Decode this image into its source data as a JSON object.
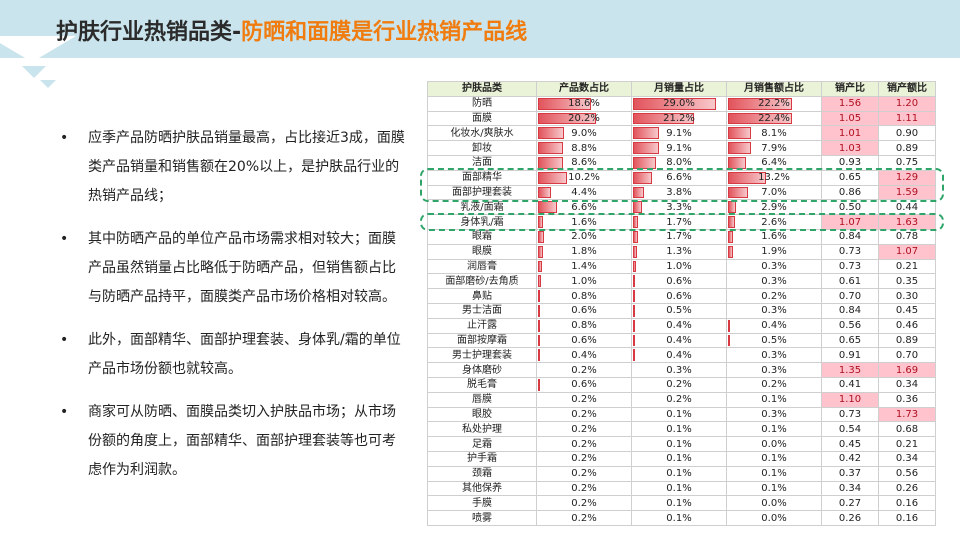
{
  "title": {
    "part1": "护肤行业热销品类-",
    "part2": "防晒和面膜是行业热销产品线"
  },
  "bullets": [
    "应季产品防晒护肤品销量最高，占比接近3成，面膜类产品销量和销售额在20%以上，是护肤品行业的热销产品线；",
    "其中防晒产品的单位产品市场需求相对较大；面膜产品虽然销量占比略低于防晒产品，但销售额占比与防晒产品持平，面膜类产品市场价格相对较高。",
    "此外，面部精华、面部护理套装、身体乳/霜的单位产品市场份额也就较高。",
    "商家可从防晒、面膜品类切入护肤品市场；从市场份额的角度上，面部精华、面部护理套装等也可考虑作为利润款。"
  ],
  "bullet_symbol": "•",
  "table": {
    "headers": [
      "护肤品类",
      "产品数占比",
      "月销量占比",
      "月销售额占比",
      "销产比",
      "销产额比"
    ],
    "rows": [
      {
        "cat": "防晒",
        "p": "18.6%",
        "m": "29.0%",
        "s": "22.2%",
        "r1": "1.56",
        "r2": "1.20",
        "pv": 18.6,
        "mv": 29.0,
        "sv": 22.2,
        "h1": true,
        "h2": true
      },
      {
        "cat": "面膜",
        "p": "20.2%",
        "m": "21.2%",
        "s": "22.4%",
        "r1": "1.05",
        "r2": "1.11",
        "pv": 20.2,
        "mv": 21.2,
        "sv": 22.4,
        "h1": true,
        "h2": true
      },
      {
        "cat": "化妆水/爽肤水",
        "p": "9.0%",
        "m": "9.1%",
        "s": "8.1%",
        "r1": "1.01",
        "r2": "0.90",
        "pv": 9.0,
        "mv": 9.1,
        "sv": 8.1,
        "h1": true,
        "h2": false
      },
      {
        "cat": "卸妆",
        "p": "8.8%",
        "m": "9.1%",
        "s": "7.9%",
        "r1": "1.03",
        "r2": "0.89",
        "pv": 8.8,
        "mv": 9.1,
        "sv": 7.9,
        "h1": true,
        "h2": false
      },
      {
        "cat": "洁面",
        "p": "8.6%",
        "m": "8.0%",
        "s": "6.4%",
        "r1": "0.93",
        "r2": "0.75",
        "pv": 8.6,
        "mv": 8.0,
        "sv": 6.4,
        "h1": false,
        "h2": false
      },
      {
        "cat": "面部精华",
        "p": "10.2%",
        "m": "6.6%",
        "s": "13.2%",
        "r1": "0.65",
        "r2": "1.29",
        "pv": 10.2,
        "mv": 6.6,
        "sv": 13.2,
        "h1": false,
        "h2": true
      },
      {
        "cat": "面部护理套装",
        "p": "4.4%",
        "m": "3.8%",
        "s": "7.0%",
        "r1": "0.86",
        "r2": "1.59",
        "pv": 4.4,
        "mv": 3.8,
        "sv": 7.0,
        "h1": false,
        "h2": true
      },
      {
        "cat": "乳液/面霜",
        "p": "6.6%",
        "m": "3.3%",
        "s": "2.9%",
        "r1": "0.50",
        "r2": "0.44",
        "pv": 6.6,
        "mv": 3.3,
        "sv": 2.9,
        "h1": false,
        "h2": false
      },
      {
        "cat": "身体乳/霜",
        "p": "1.6%",
        "m": "1.7%",
        "s": "2.6%",
        "r1": "1.07",
        "r2": "1.63",
        "pv": 1.6,
        "mv": 1.7,
        "sv": 2.6,
        "h1": true,
        "h2": true
      },
      {
        "cat": "眼霜",
        "p": "2.0%",
        "m": "1.7%",
        "s": "1.6%",
        "r1": "0.84",
        "r2": "0.78",
        "pv": 2.0,
        "mv": 1.7,
        "sv": 1.6,
        "h1": false,
        "h2": false
      },
      {
        "cat": "眼膜",
        "p": "1.8%",
        "m": "1.3%",
        "s": "1.9%",
        "r1": "0.73",
        "r2": "1.07",
        "pv": 1.8,
        "mv": 1.3,
        "sv": 1.9,
        "h1": false,
        "h2": true
      },
      {
        "cat": "润唇膏",
        "p": "1.4%",
        "m": "1.0%",
        "s": "0.3%",
        "r1": "0.73",
        "r2": "0.21",
        "pv": 1.4,
        "mv": 1.0,
        "sv": 0.3,
        "h1": false,
        "h2": false
      },
      {
        "cat": "面部磨砂/去角质",
        "p": "1.0%",
        "m": "0.6%",
        "s": "0.3%",
        "r1": "0.61",
        "r2": "0.35",
        "pv": 1.0,
        "mv": 0.6,
        "sv": 0.3,
        "h1": false,
        "h2": false
      },
      {
        "cat": "鼻贴",
        "p": "0.8%",
        "m": "0.6%",
        "s": "0.2%",
        "r1": "0.70",
        "r2": "0.30",
        "pv": 0.8,
        "mv": 0.6,
        "sv": 0.2,
        "h1": false,
        "h2": false
      },
      {
        "cat": "男士洁面",
        "p": "0.6%",
        "m": "0.5%",
        "s": "0.3%",
        "r1": "0.84",
        "r2": "0.45",
        "pv": 0.6,
        "mv": 0.5,
        "sv": 0.3,
        "h1": false,
        "h2": false
      },
      {
        "cat": "止汗露",
        "p": "0.8%",
        "m": "0.4%",
        "s": "0.4%",
        "r1": "0.56",
        "r2": "0.46",
        "pv": 0.8,
        "mv": 0.4,
        "sv": 0.4,
        "h1": false,
        "h2": false
      },
      {
        "cat": "面部按摩霜",
        "p": "0.6%",
        "m": "0.4%",
        "s": "0.5%",
        "r1": "0.65",
        "r2": "0.89",
        "pv": 0.6,
        "mv": 0.4,
        "sv": 0.5,
        "h1": false,
        "h2": false
      },
      {
        "cat": "男士护理套装",
        "p": "0.4%",
        "m": "0.4%",
        "s": "0.3%",
        "r1": "0.91",
        "r2": "0.70",
        "pv": 0.4,
        "mv": 0.4,
        "sv": 0.3,
        "h1": false,
        "h2": false
      },
      {
        "cat": "身体磨砂",
        "p": "0.2%",
        "m": "0.3%",
        "s": "0.3%",
        "r1": "1.35",
        "r2": "1.69",
        "pv": 0.2,
        "mv": 0.3,
        "sv": 0.3,
        "h1": true,
        "h2": true
      },
      {
        "cat": "脱毛膏",
        "p": "0.6%",
        "m": "0.2%",
        "s": "0.2%",
        "r1": "0.41",
        "r2": "0.34",
        "pv": 0.6,
        "mv": 0.2,
        "sv": 0.2,
        "h1": false,
        "h2": false
      },
      {
        "cat": "唇膜",
        "p": "0.2%",
        "m": "0.2%",
        "s": "0.1%",
        "r1": "1.10",
        "r2": "0.36",
        "pv": 0.2,
        "mv": 0.2,
        "sv": 0.1,
        "h1": true,
        "h2": false
      },
      {
        "cat": "眼胶",
        "p": "0.2%",
        "m": "0.1%",
        "s": "0.3%",
        "r1": "0.73",
        "r2": "1.73",
        "pv": 0.2,
        "mv": 0.1,
        "sv": 0.3,
        "h1": false,
        "h2": true
      },
      {
        "cat": "私处护理",
        "p": "0.2%",
        "m": "0.1%",
        "s": "0.1%",
        "r1": "0.54",
        "r2": "0.68",
        "pv": 0.2,
        "mv": 0.1,
        "sv": 0.1,
        "h1": false,
        "h2": false
      },
      {
        "cat": "足霜",
        "p": "0.2%",
        "m": "0.1%",
        "s": "0.0%",
        "r1": "0.45",
        "r2": "0.21",
        "pv": 0.2,
        "mv": 0.1,
        "sv": 0.0,
        "h1": false,
        "h2": false
      },
      {
        "cat": "护手霜",
        "p": "0.2%",
        "m": "0.1%",
        "s": "0.1%",
        "r1": "0.42",
        "r2": "0.34",
        "pv": 0.2,
        "mv": 0.1,
        "sv": 0.1,
        "h1": false,
        "h2": false
      },
      {
        "cat": "颈霜",
        "p": "0.2%",
        "m": "0.1%",
        "s": "0.1%",
        "r1": "0.37",
        "r2": "0.56",
        "pv": 0.2,
        "mv": 0.1,
        "sv": 0.1,
        "h1": false,
        "h2": false
      },
      {
        "cat": "其他保养",
        "p": "0.2%",
        "m": "0.1%",
        "s": "0.1%",
        "r1": "0.34",
        "r2": "0.26",
        "pv": 0.2,
        "mv": 0.1,
        "sv": 0.1,
        "h1": false,
        "h2": false
      },
      {
        "cat": "手膜",
        "p": "0.2%",
        "m": "0.1%",
        "s": "0.0%",
        "r1": "0.27",
        "r2": "0.16",
        "pv": 0.2,
        "mv": 0.1,
        "sv": 0.0,
        "h1": false,
        "h2": false
      },
      {
        "cat": "喷雾",
        "p": "0.2%",
        "m": "0.1%",
        "s": "0.0%",
        "r1": "0.26",
        "r2": "0.16",
        "pv": 0.2,
        "mv": 0.1,
        "sv": 0.0,
        "h1": false,
        "h2": false
      }
    ],
    "bar_max": 30,
    "highlight_groups": [
      {
        "categories": [
          "面部精华",
          "面部护理套装"
        ]
      },
      {
        "categories": [
          "身体乳/霜"
        ]
      }
    ]
  },
  "colors": {
    "band": "#c9e4ec",
    "title_accent": "#f07c0f",
    "header_bg": "#eaf3d8",
    "highlight_bg": "#ffc3cd",
    "bar": "#e2545c",
    "dash": "#2fa56a"
  }
}
